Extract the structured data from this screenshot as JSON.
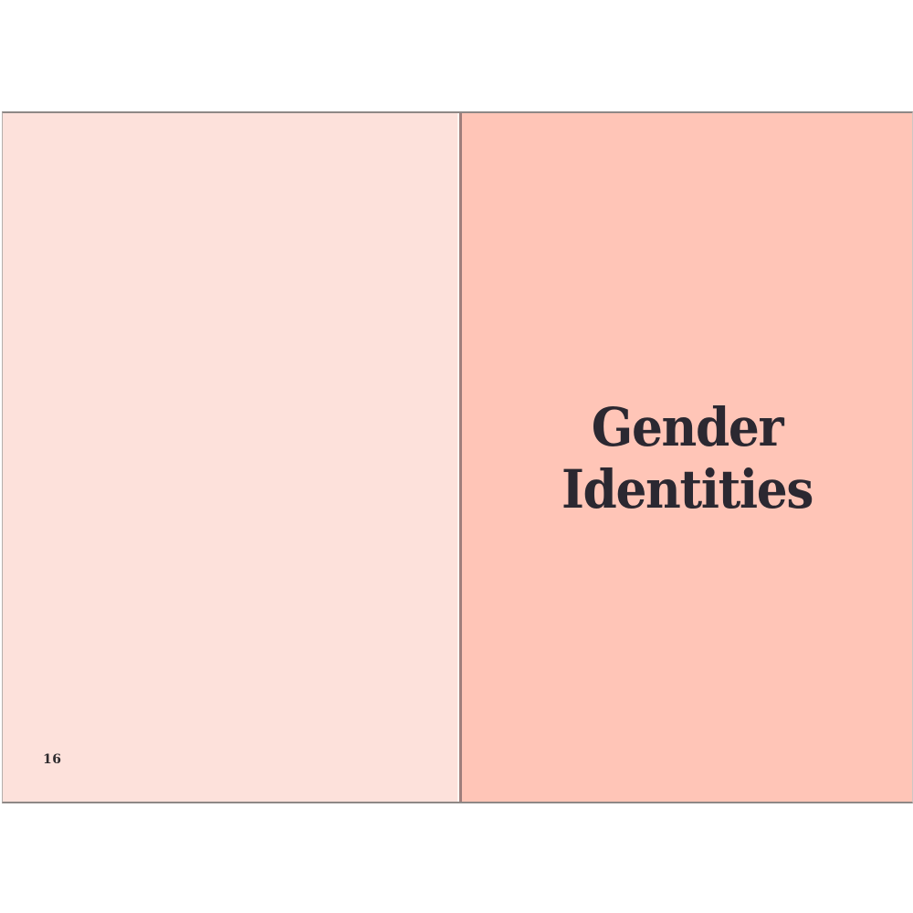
{
  "spread": {
    "left_page": {
      "page_number": "16",
      "background_color": "#fde1db"
    },
    "right_page": {
      "title_line1": "Gender",
      "title_line2": "Identities",
      "background_color": "#ffc5b7"
    },
    "colors": {
      "title_text": "#2b2831",
      "page_number_text": "#2e2a2e",
      "edge_border": "#8e8886",
      "gutter_line": "#a07f7c",
      "surround": "#ffffff"
    }
  }
}
